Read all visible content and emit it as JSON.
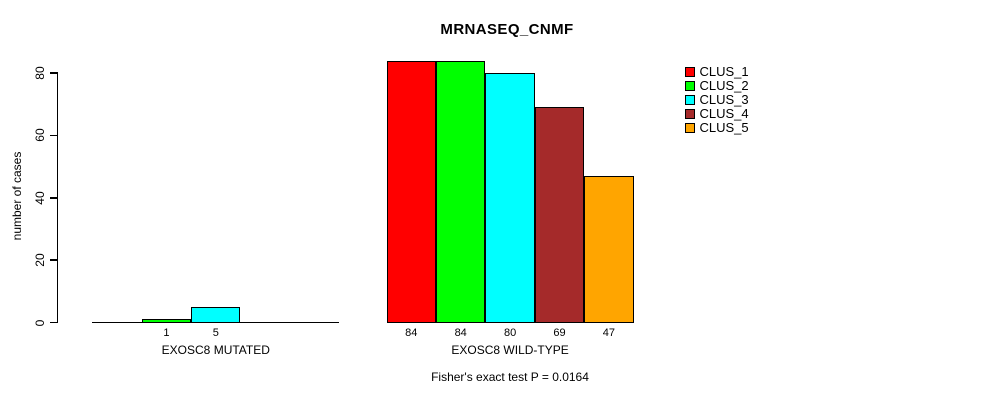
{
  "chart_data": {
    "type": "bar",
    "title": "MRNASEQ_CNMF",
    "ylabel": "number of cases",
    "xlabel": "",
    "ylim": [
      0,
      84
    ],
    "y_ticks": [
      0,
      20,
      40,
      60,
      80
    ],
    "grid": false,
    "legend_position": "top-right",
    "groups": [
      "EXOSC8 MUTATED",
      "EXOSC8 WILD-TYPE"
    ],
    "series": [
      {
        "name": "CLUS_1",
        "color": "#FF0000",
        "values": [
          0,
          84
        ]
      },
      {
        "name": "CLUS_2",
        "color": "#00FF00",
        "values": [
          1,
          84
        ]
      },
      {
        "name": "CLUS_3",
        "color": "#00FFFF",
        "values": [
          5,
          80
        ]
      },
      {
        "name": "CLUS_4",
        "color": "#A52A2A",
        "values": [
          0,
          69
        ]
      },
      {
        "name": "CLUS_5",
        "color": "#FFA500",
        "values": [
          0,
          47
        ]
      }
    ],
    "bar_value_labels_shown": [
      "1",
      "5",
      "84",
      "84",
      "80",
      "69",
      "47"
    ],
    "annotation": "Fisher's exact test P = 0.0164",
    "colors": {
      "axis": "#000000",
      "text": "#000000",
      "background": "#FFFFFF"
    }
  }
}
